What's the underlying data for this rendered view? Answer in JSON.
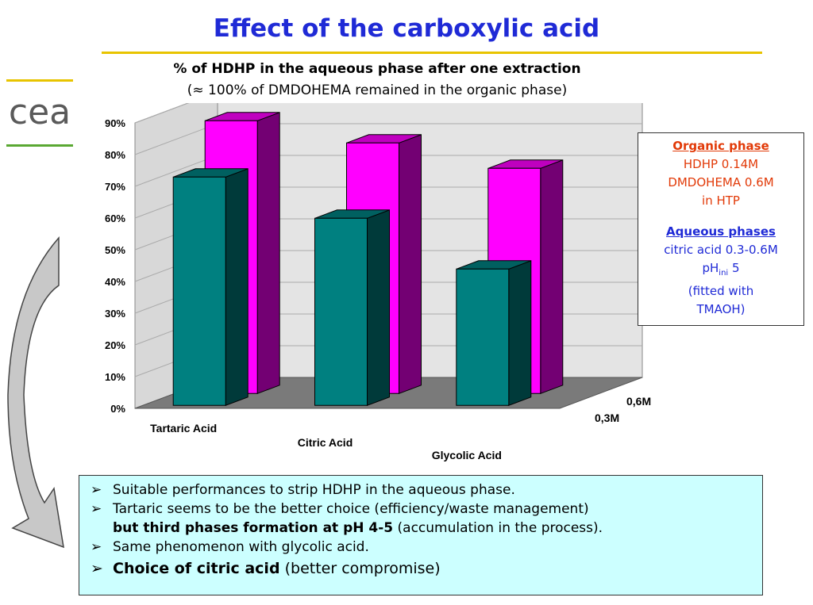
{
  "slide": {
    "title": "Effect of the carboxylic acid",
    "logo_text": "cea"
  },
  "chart_data": {
    "type": "bar",
    "title": "% of HDHP in the aqueous phase after one extraction",
    "subtitle": "(≈ 100% of DMDOHEMA remained in the organic phase)",
    "categories": [
      "Tartaric Acid",
      "Citric Acid",
      "Glycolic Acid"
    ],
    "series": [
      {
        "name": "0,3M",
        "values": [
          72,
          59,
          43
        ],
        "color": "#008080"
      },
      {
        "name": "0,6M",
        "values": [
          86,
          79,
          71
        ],
        "color": "#ff00ff"
      }
    ],
    "yticks": [
      "0%",
      "10%",
      "20%",
      "30%",
      "40%",
      "50%",
      "60%",
      "70%",
      "80%",
      "90%"
    ],
    "ylim": [
      0,
      90
    ],
    "grid": true
  },
  "legend_box": {
    "organic_heading": "Organic phase",
    "organic_lines": [
      "HDHP 0.14M",
      "DMDOHEMA 0.6M",
      "in HTP"
    ],
    "aqueous_heading": "Aqueous phases",
    "aqueous_line1": "citric acid 0.3-0.6M",
    "ph_main": "pH",
    "ph_sub": "ini",
    "ph_value": " 5",
    "aqueous_line3": "(fitted with",
    "aqueous_line4": "TMAOH)"
  },
  "notes": {
    "bullet": "➢",
    "line1": "Suitable performances to strip HDHP in the aqueous phase.",
    "line2": "Tartaric seems to be the better choice (efficiency/waste management)",
    "line3_bold": "but third phases formation at pH 4-5",
    "line3_rest": " (accumulation in the process).",
    "line4": "Same phenomenon with glycolic acid.",
    "line5_bold": "Choice of citric acid",
    "line5_rest": " (better compromise)"
  }
}
